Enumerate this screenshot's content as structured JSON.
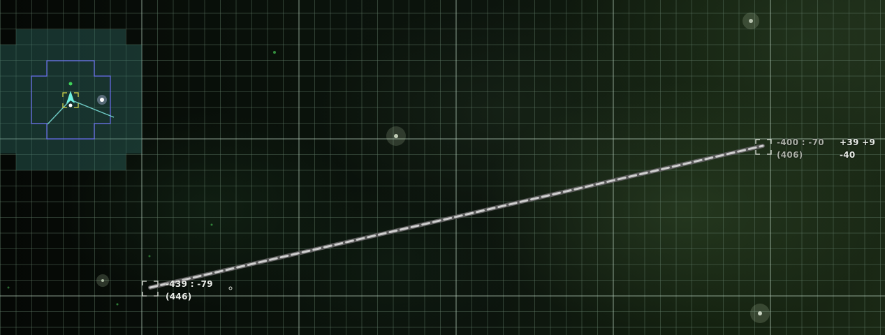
{
  "route": {
    "start": {
      "coords": "-439 : -79",
      "distance": "(446)"
    },
    "end": {
      "coords": "-400 : -70",
      "distance": "(406)",
      "delta": "+39 +9",
      "delta_z": "-40"
    }
  },
  "colors": {
    "grid_minor": "#5f7a66",
    "grid_major": "#a9c2b2",
    "sector_fill": "#2f6b63",
    "sector_outline": "#6a6ff0",
    "ship": "#6ef0e0",
    "route_line": "#9a9a9a",
    "text_bright": "#e8ece6",
    "text_dim": "#a9aea4"
  },
  "icons": {
    "ship": "ship-icon",
    "star": "star-icon",
    "target": "target-bracket-icon",
    "waypoint": "waypoint-marker-icon"
  }
}
